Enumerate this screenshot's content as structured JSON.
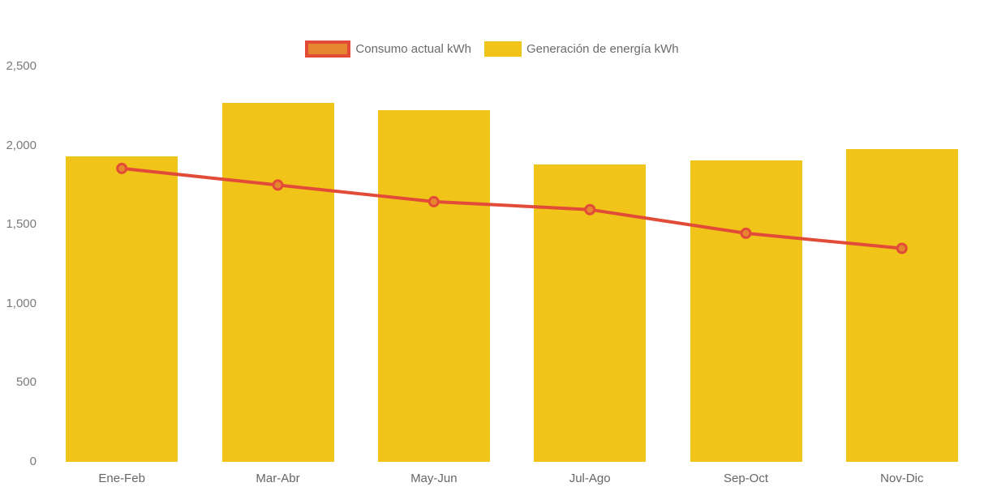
{
  "chart_data": {
    "type": "bar",
    "title": "",
    "categories": [
      "Ene-Feb",
      "Mar-Abr",
      "May-Jun",
      "Jul-Ago",
      "Sep-Oct",
      "Nov-Dic"
    ],
    "series": [
      {
        "name": "Consumo actual kWh",
        "type": "line",
        "line_color": "#e14b38",
        "marker_fill": "#e6862e",
        "values": [
          1855,
          1750,
          1645,
          1595,
          1445,
          1350
        ]
      },
      {
        "name": "Generación de energía kWh",
        "type": "bar",
        "bar_color": "#f0c419",
        "values": [
          1930,
          2270,
          2225,
          1880,
          1905,
          1980
        ]
      }
    ],
    "xlabel": "",
    "ylabel": "",
    "ylim": [
      0,
      2500
    ],
    "ytick_step": 500,
    "ytick_labels": [
      "0",
      "500",
      "1,000",
      "1,500",
      "2,000",
      "2,500"
    ],
    "grid": false,
    "legend_position": "top-center"
  },
  "colors": {
    "bar": "#f0c419",
    "line": "#e14b38",
    "marker": "#e6862e",
    "axis_text": "#7a7a7a",
    "legend_text": "#6b6b6b",
    "background": "#ffffff"
  }
}
